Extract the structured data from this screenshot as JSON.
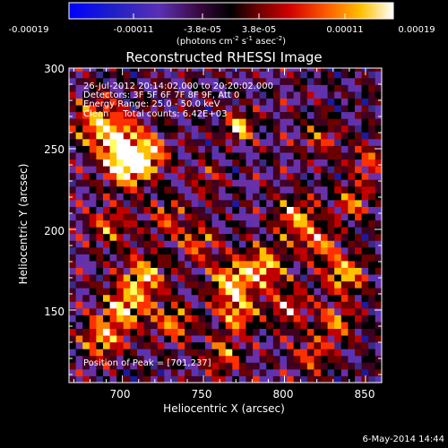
{
  "colorbar": {
    "tick_labels": [
      "-0.00019",
      "-0.00011",
      "-3.8e-05",
      "3.8e-05",
      "0.00011",
      "0.00019"
    ],
    "range": [
      -0.00019,
      0.00019
    ],
    "units_prefix": "(photons cm",
    "units_exp1": "-2",
    "units_mid": " s",
    "units_exp2": "-1",
    "units_mid2": " asec",
    "units_exp3": "-2",
    "units_suffix": ")"
  },
  "chart_data": {
    "type": "heatmap",
    "title": "Reconstructed RHESSI Image",
    "xlabel": "Heliocentric X (arcsec)",
    "ylabel": "Heliocentric Y (arcsec)",
    "xlim": [
      667,
      860
    ],
    "ylim": [
      105,
      300
    ],
    "x_ticks": [
      700,
      750,
      800,
      850
    ],
    "y_ticks": [
      150,
      200,
      250,
      300
    ],
    "x_tick_labels": [
      "700",
      "750",
      "800",
      "850"
    ],
    "y_tick_labels": [
      "150",
      "200",
      "250",
      "300"
    ],
    "annotations": [
      "26-Jul-2012 20:14:02.000 to 20:20:02.000",
      "Detectors: 3F 5F 6F 7F 8F 9F, Att 0",
      "Energy Range: 25.0 - 50.0 keV",
      "Clean     Total counts: 6.42E+03"
    ],
    "peak_label": "Position of Peak = [701,237]",
    "peak": [
      701,
      237
    ],
    "colormap": [
      "#0000ff",
      "#1a1aa0",
      "#3a2a8a",
      "#5a34b0",
      "#6a30a8",
      "#400020",
      "#000000",
      "#6a0000",
      "#c00000",
      "#ff3000",
      "#ff8000",
      "#ffc000",
      "#ffff60",
      "#ffffff"
    ]
  },
  "footer": {
    "date": "6-May-2014 14:44"
  }
}
